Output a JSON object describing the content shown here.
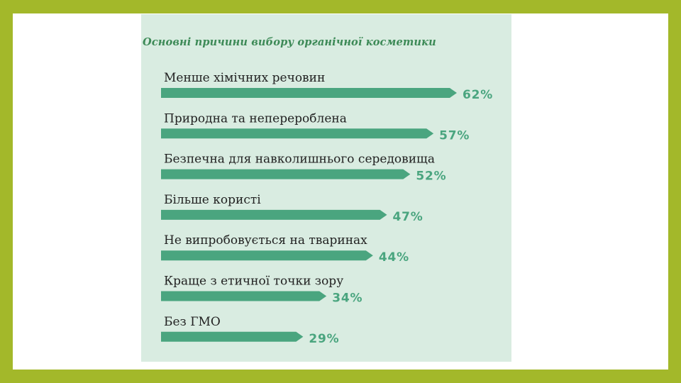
{
  "colors": {
    "frame": "#a3b82a",
    "panel": "#d9ece1",
    "bar": "#4aa57f",
    "value_text": "#4aa57f",
    "title_text": "#3d8a57"
  },
  "chart_data": {
    "type": "bar",
    "orientation": "horizontal",
    "title": "Основні причини вибору органічної косметики",
    "categories": [
      "Менше хімічних речовин",
      "Природна та неперероблена",
      "Безпечна для навколишнього середовища",
      "Більше користі",
      "Не випробовується на тваринах",
      "Краще з етичної точки зору",
      "Без ГМО"
    ],
    "values": [
      62,
      57,
      52,
      47,
      44,
      34,
      29
    ],
    "value_labels": [
      "62%",
      "57%",
      "52%",
      "47%",
      "44%",
      "34%",
      "29%"
    ],
    "unit": "%",
    "xlim": [
      0,
      62
    ],
    "grid": false,
    "legend": "none"
  }
}
